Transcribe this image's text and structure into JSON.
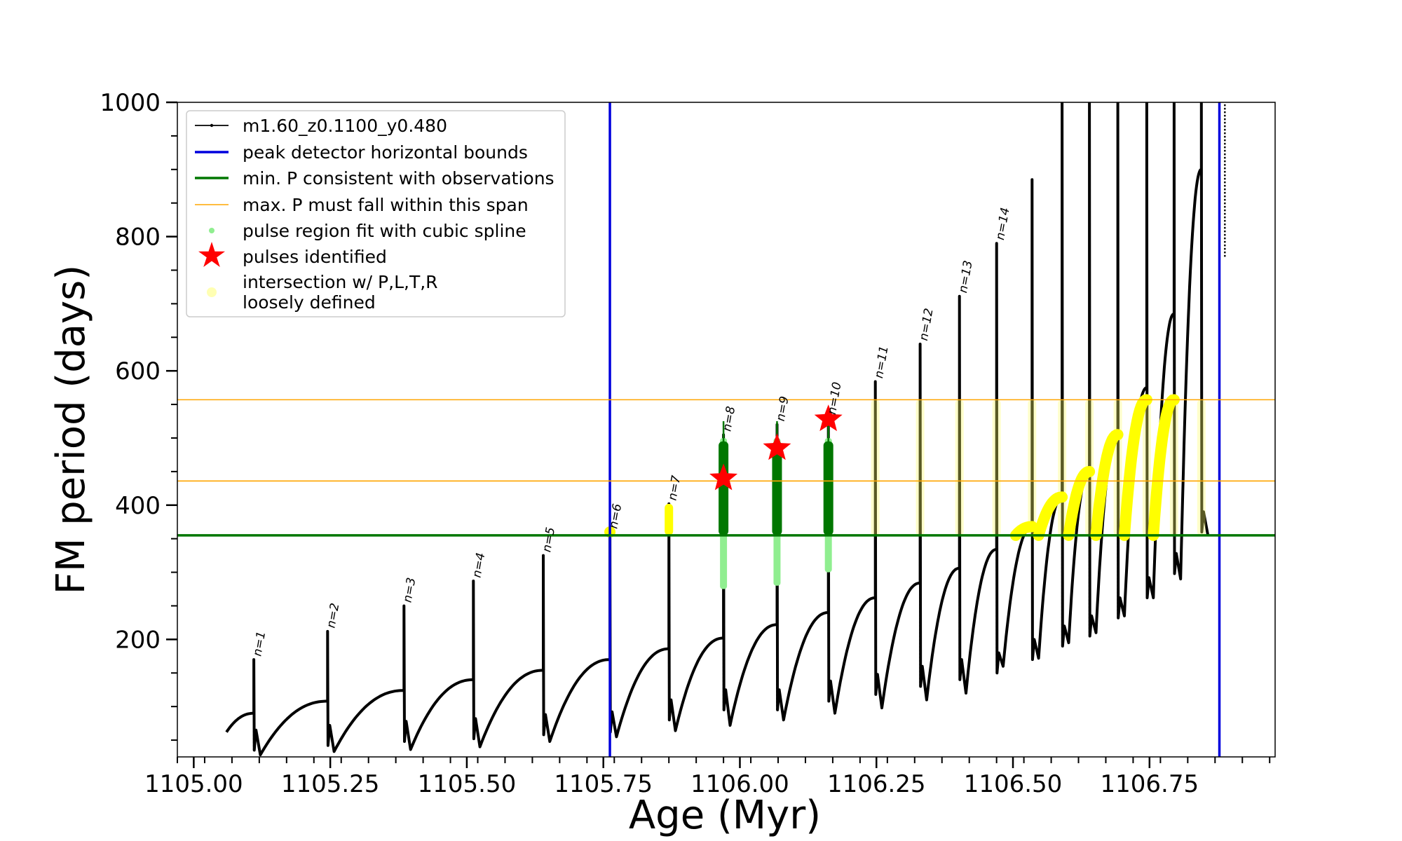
{
  "chart_data": {
    "type": "line",
    "xlabel": "Age (Myr)",
    "ylabel": "FM period (days)",
    "xlim": [
      1104.97,
      1106.98
    ],
    "ylim": [
      25,
      1000
    ],
    "xticks": [
      1105.0,
      1105.25,
      1105.5,
      1105.75,
      1106.0,
      1106.25,
      1106.5,
      1106.75
    ],
    "xtick_labels": [
      "1105.00",
      "1105.25",
      "1105.50",
      "1105.75",
      "1106.00",
      "1106.25",
      "1106.50",
      "1106.75"
    ],
    "yticks": [
      200,
      400,
      600,
      800,
      1000
    ],
    "ytick_labels": [
      "200",
      "400",
      "600",
      "800",
      "1000"
    ],
    "legend_position": "top-left",
    "legend": [
      {
        "label": "m1.60_z0.1100_y0.480",
        "color": "#000000",
        "kind": "line-marker"
      },
      {
        "label": "peak detector horizontal bounds",
        "color": "#0000dd",
        "kind": "line"
      },
      {
        "label": "min. P consistent with observations",
        "color": "#007700",
        "kind": "line"
      },
      {
        "label": "max. P must fall within this span",
        "color": "#ffa500",
        "kind": "thin-line"
      },
      {
        "label": "pulse region fit with cubic spline",
        "color": "#90ee90",
        "kind": "dot"
      },
      {
        "label": "pulses identified",
        "color": "#ff0000",
        "kind": "star"
      },
      {
        "label": "intersection w/ P,L,T,R",
        "label2": "loosely defined",
        "color": "#ffff80",
        "kind": "faint-dot"
      }
    ],
    "vertical_bounds": [
      1105.762,
      1106.878
    ],
    "min_period": 355,
    "max_period_span": [
      436,
      557
    ],
    "pulse_labels": [
      "n=1",
      "n=2",
      "n=3",
      "n=4",
      "n=5",
      "n=6",
      "n=7",
      "n=8",
      "n=9",
      "n=10",
      "n=11",
      "n=12",
      "n=13",
      "n=14"
    ],
    "pulses": [
      {
        "n": 1,
        "age": 1105.11,
        "start": 62,
        "valley_start": 90,
        "peak": 170,
        "drop": 35,
        "min": 28
      },
      {
        "n": 2,
        "age": 1105.245,
        "valley_start": 108,
        "peak": 212,
        "drop": 42,
        "min": 33
      },
      {
        "n": 3,
        "age": 1105.385,
        "valley_start": 124,
        "peak": 250,
        "drop": 48,
        "min": 36
      },
      {
        "n": 4,
        "age": 1105.512,
        "valley_start": 140,
        "peak": 287,
        "drop": 52,
        "min": 40
      },
      {
        "n": 5,
        "age": 1105.64,
        "valley_start": 154,
        "peak": 325,
        "drop": 58,
        "min": 48
      },
      {
        "n": 6,
        "age": 1105.762,
        "valley_start": 170,
        "peak": 360,
        "drop": 62,
        "min": 55
      },
      {
        "n": 7,
        "age": 1105.87,
        "valley_start": 186,
        "peak": 402,
        "drop": 80,
        "min": 64
      },
      {
        "n": 8,
        "age": 1105.97,
        "valley_start": 202,
        "peak": 505,
        "drop": 95,
        "min": 72
      },
      {
        "n": 9,
        "age": 1106.068,
        "valley_start": 222,
        "peak": 520,
        "drop": 95,
        "min": 80
      },
      {
        "n": 10,
        "age": 1106.162,
        "valley_start": 240,
        "peak": 530,
        "drop": 108,
        "min": 90
      },
      {
        "n": 11,
        "age": 1106.248,
        "valley_start": 262,
        "peak": 584,
        "drop": 118,
        "min": 98
      },
      {
        "n": 12,
        "age": 1106.33,
        "valley_start": 284,
        "peak": 640,
        "drop": 130,
        "min": 110
      },
      {
        "n": 13,
        "age": 1106.402,
        "valley_start": 306,
        "peak": 711,
        "drop": 140,
        "min": 120
      },
      {
        "n": 14,
        "age": 1106.47,
        "valley_start": 334,
        "peak": 790,
        "drop": 150,
        "min": 160
      },
      {
        "n": 15,
        "age": 1106.535,
        "valley_start": 368,
        "peak": 885,
        "drop": 170,
        "min": 172
      },
      {
        "n": 16,
        "age": 1106.59,
        "valley_start": 412,
        "peak": 1000,
        "drop": 190,
        "min": 195
      },
      {
        "n": 17,
        "age": 1106.64,
        "valley_start": 450,
        "peak": 1000,
        "drop": 205,
        "min": 210
      },
      {
        "n": 18,
        "age": 1106.692,
        "valley_start": 505,
        "peak": 1000,
        "drop": 232,
        "min": 235
      },
      {
        "n": 19,
        "age": 1106.745,
        "valley_start": 575,
        "peak": 1000,
        "drop": 262,
        "min": 262
      },
      {
        "n": 20,
        "age": 1106.795,
        "valley_start": 685,
        "peak": 1000,
        "drop": 298,
        "min": 290
      },
      {
        "n": 21,
        "age": 1106.845,
        "valley_start": 900,
        "peak": 1000,
        "drop": 360,
        "min": 355
      }
    ],
    "identified_pulses": [
      {
        "age": 1105.97,
        "period": 440
      },
      {
        "age": 1106.068,
        "period": 485
      },
      {
        "age": 1106.162,
        "period": 528
      }
    ],
    "spline_regions": [
      {
        "age": 1105.97,
        "from": 275,
        "to": 500
      },
      {
        "age": 1106.068,
        "from": 280,
        "to": 500
      },
      {
        "age": 1106.162,
        "from": 300,
        "to": 500
      }
    ],
    "green_spikes": [
      {
        "age": 1105.97,
        "from": 355,
        "to": 525
      },
      {
        "age": 1106.068,
        "from": 355,
        "to": 525
      },
      {
        "age": 1106.162,
        "from": 355,
        "to": 520
      }
    ]
  }
}
